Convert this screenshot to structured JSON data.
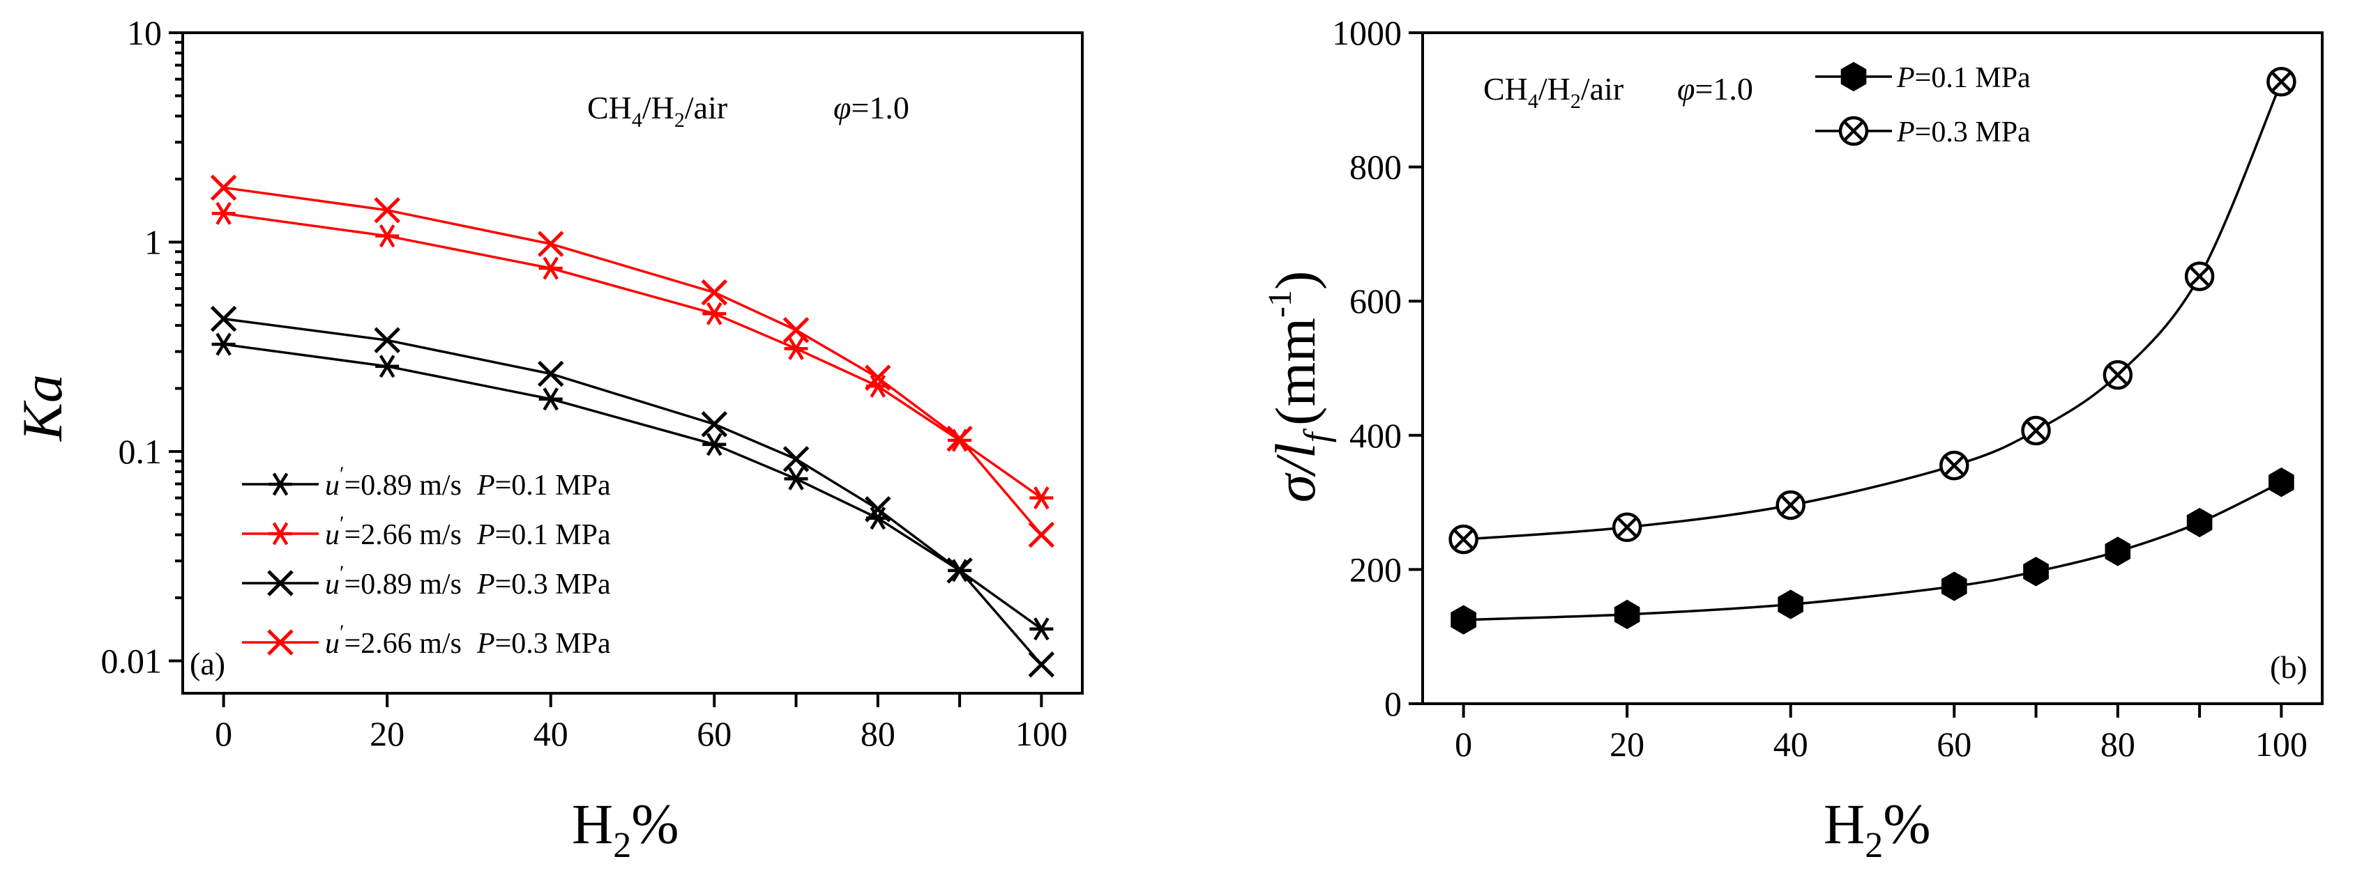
{
  "chart_data": [
    {
      "type": "line",
      "panel_label": "(a)",
      "annotation": {
        "mixture": [
          "CH",
          "4",
          "/H",
          "2",
          "/air"
        ],
        "phi_symbol": "φ",
        "phi_value": "=1.0"
      },
      "xlabel": {
        "main": "H",
        "sub": "2",
        "suffix": "%"
      },
      "ylabel": "Ka",
      "yscale": "log",
      "xlim": [
        -5,
        105
      ],
      "ylim": [
        0.007,
        10
      ],
      "xticks": [
        0,
        20,
        40,
        60,
        70,
        80,
        90,
        100
      ],
      "xtick_labels": [
        "0",
        "20",
        "40",
        "60",
        "80",
        "100"
      ],
      "xtick_label_values": [
        0,
        20,
        40,
        60,
        80,
        100
      ],
      "yticks": [
        0.01,
        0.1,
        1,
        10
      ],
      "ytick_labels": [
        "0.01",
        "0.1",
        "1",
        "10"
      ],
      "legend_position": "bottom-left",
      "x": [
        0,
        20,
        40,
        60,
        70,
        80,
        90,
        100
      ],
      "series": [
        {
          "name": "u'=0.89 m/s P=0.1 MPa",
          "legend": {
            "u": "u",
            "prime": "′",
            "speed": "=0.89 m/s",
            "p": "P",
            "pressure": "=0.1 MPa"
          },
          "color": "#000000",
          "marker": "asterisk",
          "values": [
            0.325,
            0.255,
            0.178,
            0.108,
            0.074,
            0.048,
            0.027,
            0.0142
          ]
        },
        {
          "name": "u'=2.66 m/s P=0.1 MPa",
          "legend": {
            "u": "u",
            "prime": "′",
            "speed": "=2.66 m/s",
            "p": "P",
            "pressure": "=0.1 MPa"
          },
          "color": "#ff0000",
          "marker": "asterisk",
          "values": [
            1.37,
            1.07,
            0.75,
            0.455,
            0.31,
            0.205,
            0.113,
            0.06
          ]
        },
        {
          "name": "u'=0.89 m/s P=0.3 MPa",
          "legend": {
            "u": "u",
            "prime": "′",
            "speed": "=0.89 m/s",
            "p": "P",
            "pressure": "=0.3 MPa"
          },
          "color": "#000000",
          "marker": "x",
          "values": [
            0.43,
            0.34,
            0.235,
            0.135,
            0.092,
            0.053,
            0.027,
            0.0096
          ]
        },
        {
          "name": "u'=2.66 m/s P=0.3 MPa",
          "legend": {
            "u": "u",
            "prime": "′",
            "speed": "=2.66 m/s",
            "p": "P",
            "pressure": "=0.3 MPa"
          },
          "color": "#ff0000",
          "marker": "x",
          "values": [
            1.82,
            1.42,
            0.98,
            0.575,
            0.38,
            0.225,
            0.115,
            0.04
          ]
        }
      ]
    },
    {
      "type": "line",
      "panel_label": "(b)",
      "annotation": {
        "mixture": [
          "CH",
          "4",
          "/H",
          "2",
          "/air"
        ],
        "phi_symbol": "φ",
        "phi_value": "=1.0"
      },
      "xlabel": {
        "main": "H",
        "sub": "2",
        "suffix": "%"
      },
      "ylabel": {
        "sigma": "σ",
        "slash_l": "/l",
        "sub": "f",
        "unit": "(mm",
        "exp": "-1",
        "close": ")"
      },
      "xlim": [
        -5,
        105
      ],
      "ylim": [
        0,
        1000
      ],
      "xticks": [
        0,
        20,
        40,
        60,
        70,
        80,
        90,
        100
      ],
      "xtick_labels": [
        "0",
        "20",
        "40",
        "60",
        "80",
        "100"
      ],
      "xtick_label_values": [
        0,
        20,
        40,
        60,
        80,
        100
      ],
      "yticks": [
        0,
        200,
        400,
        600,
        800,
        1000
      ],
      "ytick_labels": [
        "0",
        "200",
        "400",
        "600",
        "800",
        "1000"
      ],
      "legend_position": "top-left",
      "x": [
        0,
        20,
        40,
        60,
        70,
        80,
        90,
        100
      ],
      "series": [
        {
          "name": "P=0.1 MPa",
          "legend": {
            "p": "P",
            "pressure": "=0.1 MPa"
          },
          "color": "#000000",
          "marker": "hexagon-filled",
          "values": [
            125,
            133,
            148,
            175,
            197,
            227,
            270,
            330
          ]
        },
        {
          "name": "P=0.3 MPa",
          "legend": {
            "p": "P",
            "pressure": "=0.3 MPa"
          },
          "color": "#000000",
          "marker": "circle-x",
          "values": [
            245,
            263,
            296,
            355,
            407,
            490,
            637,
            927
          ]
        }
      ]
    }
  ]
}
